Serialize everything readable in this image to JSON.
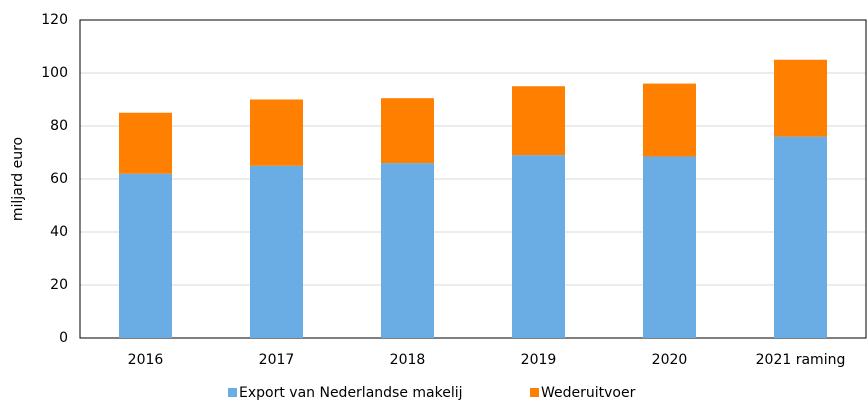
{
  "chart_data": {
    "type": "stacked_bar",
    "y_label": "miljard euro",
    "categories": [
      "2016",
      "2017",
      "2018",
      "2019",
      "2020",
      "2021 raming"
    ],
    "series": [
      {
        "name": "Export van Nederlandse makelij",
        "color": "#6aade4",
        "values": [
          62,
          65,
          66,
          69,
          68.5,
          76
        ]
      },
      {
        "name": "Wederuitvoer",
        "color": "#ff7f00",
        "values": [
          23,
          25,
          24.5,
          26,
          27.5,
          29
        ]
      }
    ],
    "ylim": [
      0,
      120
    ],
    "yticks": [
      0,
      20,
      40,
      60,
      80,
      100,
      120
    ],
    "grid": true,
    "legend": "bottom"
  }
}
